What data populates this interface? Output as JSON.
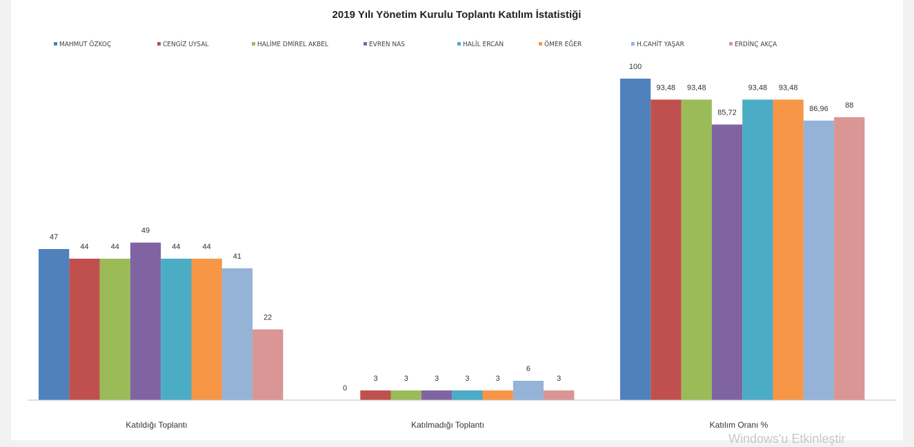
{
  "chart_data": {
    "type": "bar",
    "title": "2019 Yılı Yönetim Kurulu Toplantı Katılım İstatistiği",
    "categories": [
      "Katıldığı Toplantı",
      "Katılmadığı Toplantı",
      "Katılım Oranı %"
    ],
    "legend_position": "top",
    "grid": false,
    "ylim": [
      0,
      100
    ],
    "series": [
      {
        "name": "MAHMUT ÖZKOÇ",
        "color": "#4f81bd",
        "values": [
          47,
          0,
          100
        ],
        "labels": [
          "47",
          "0",
          "100"
        ]
      },
      {
        "name": "CENGİZ UYSAL",
        "color": "#c0504d",
        "values": [
          44,
          3,
          93.48
        ],
        "labels": [
          "44",
          "3",
          "93,48"
        ]
      },
      {
        "name": "HALİME DMİREL AKBEL",
        "color": "#9bbb59",
        "values": [
          44,
          3,
          93.48
        ],
        "labels": [
          "44",
          "3",
          "93,48"
        ]
      },
      {
        "name": "EVREN NAS",
        "color": "#8064a2",
        "values": [
          49,
          3,
          85.72
        ],
        "labels": [
          "49",
          "3",
          "85,72"
        ]
      },
      {
        "name": "HALİL ERCAN",
        "color": "#4bacc6",
        "values": [
          44,
          3,
          93.48
        ],
        "labels": [
          "44",
          "3",
          "93,48"
        ]
      },
      {
        "name": "ÖMER EĞER",
        "color": "#f79646",
        "values": [
          44,
          3,
          93.48
        ],
        "labels": [
          "44",
          "3",
          "93,48"
        ]
      },
      {
        "name": "H.CAHİT YAŞAR",
        "color": "#95b3d7",
        "values": [
          41,
          6,
          86.96
        ],
        "labels": [
          "41",
          "6",
          "86,96"
        ]
      },
      {
        "name": "ERDİNÇ AKÇA",
        "color": "#d99694",
        "values": [
          22,
          3,
          88
        ],
        "labels": [
          "22",
          "3",
          "88"
        ]
      }
    ]
  },
  "watermark": "Windows'u Etkinleştir"
}
